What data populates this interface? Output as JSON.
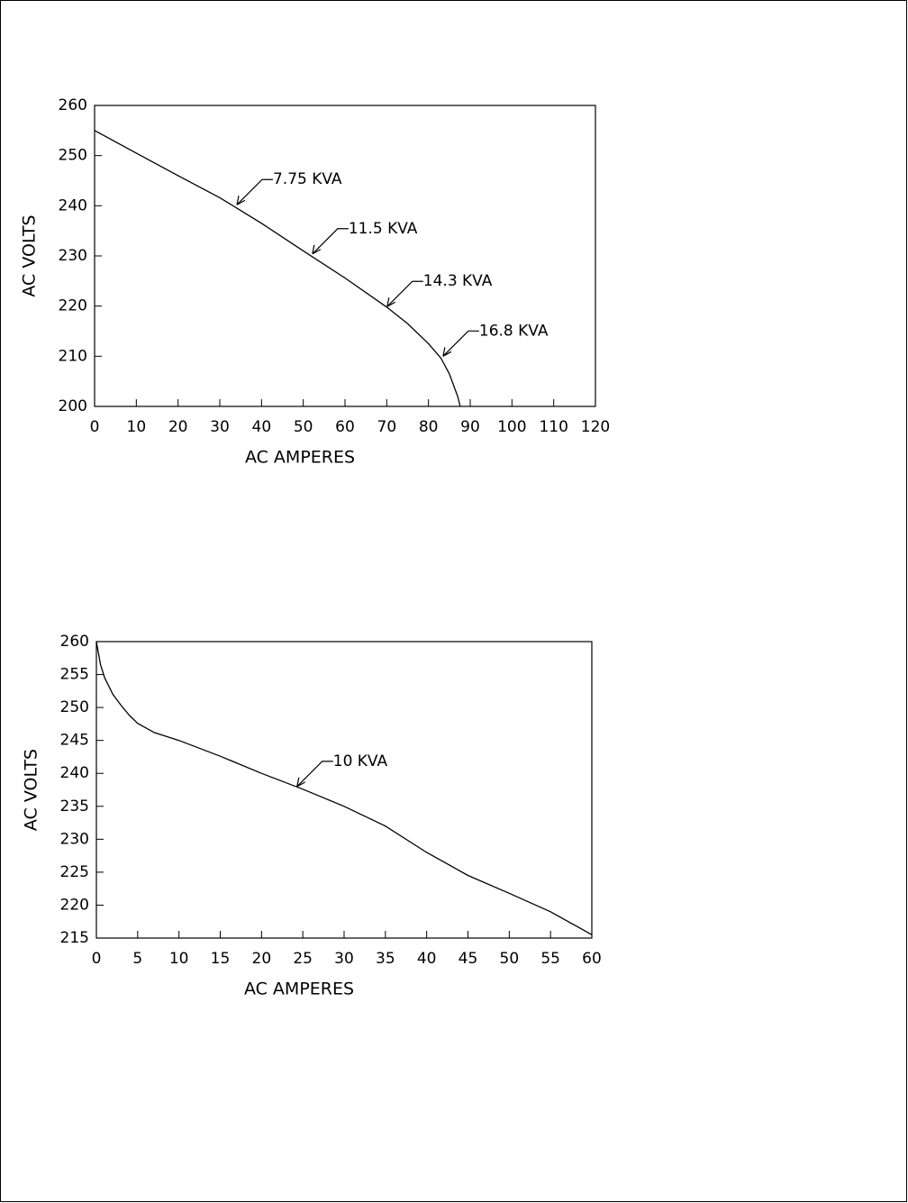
{
  "chart_data": [
    {
      "type": "line",
      "x_label": "AC AMPERES",
      "y_label": "AC VOLTS",
      "xlim": [
        0,
        120
      ],
      "ylim": [
        200,
        260
      ],
      "xticks": [
        0,
        10,
        20,
        30,
        40,
        50,
        60,
        70,
        80,
        90,
        100,
        110,
        120
      ],
      "yticks": [
        200,
        210,
        220,
        230,
        240,
        250,
        260
      ],
      "series": [
        {
          "color": "#000000",
          "x": [
            0,
            10,
            20,
            30,
            40,
            50,
            60,
            70,
            75,
            80,
            83,
            85,
            87,
            87.6
          ],
          "values": [
            255,
            250.5,
            246,
            241.6,
            236.5,
            231,
            225.6,
            219.8,
            216.5,
            212.5,
            209.6,
            206.5,
            202,
            200
          ]
        }
      ],
      "annotations": [
        {
          "text": "7.75 KVA",
          "x": 34.1,
          "y": 240.2
        },
        {
          "text": "11.5 KVA",
          "x": 52.2,
          "y": 230.4
        },
        {
          "text": "14.3 KVA",
          "x": 70.1,
          "y": 219.9
        },
        {
          "text": "16.8 KVA",
          "x": 83.5,
          "y": 210
        }
      ]
    },
    {
      "type": "line",
      "x_label": "AC AMPERES",
      "y_label": "AC VOLTS",
      "xlim": [
        0,
        60
      ],
      "ylim": [
        215,
        260
      ],
      "xticks": [
        0,
        5,
        10,
        15,
        20,
        25,
        30,
        35,
        40,
        45,
        50,
        55,
        60
      ],
      "yticks": [
        215,
        220,
        225,
        230,
        235,
        240,
        245,
        250,
        255,
        260
      ],
      "series": [
        {
          "color": "#000000",
          "x": [
            0,
            0.5,
            1,
            2,
            3,
            4,
            5,
            7,
            10,
            15,
            20,
            25,
            30,
            35,
            40,
            45,
            50,
            55,
            60
          ],
          "values": [
            260,
            256.5,
            254.5,
            252,
            250.3,
            248.8,
            247.6,
            246.2,
            245,
            242.6,
            240,
            237.6,
            235,
            232,
            228,
            224.5,
            221.8,
            219,
            215.5
          ]
        }
      ],
      "annotations": [
        {
          "text": "10 KVA",
          "x": 24.3,
          "y": 238
        }
      ]
    }
  ]
}
